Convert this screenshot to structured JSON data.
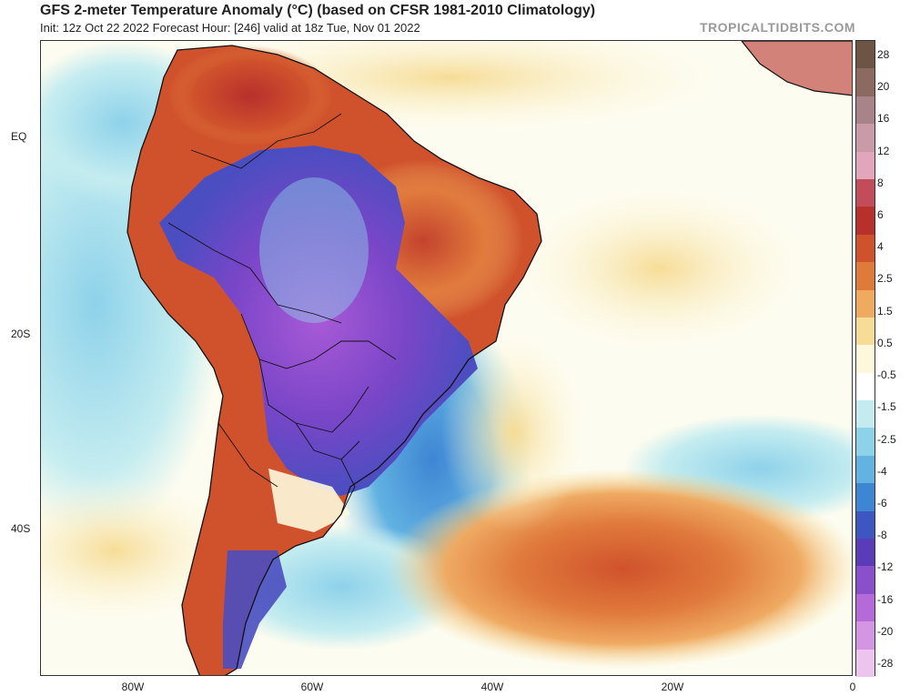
{
  "title": "GFS 2-meter Temperature Anomaly (°C) (based on CFSR 1981-2010 Climatology)",
  "subtitle": "Init: 12z Oct 22 2022   Forecast Hour: [246]   valid at 18z Tue, Nov 01 2022",
  "brand": "TROPICALTIDBITS.COM",
  "lat_labels": [
    "EQ",
    "20S",
    "40S"
  ],
  "lon_labels": [
    "80W",
    "60W",
    "40W",
    "20W",
    "0"
  ],
  "colorbar": {
    "labels": [
      "28",
      "20",
      "16",
      "12",
      "8",
      "6",
      "4",
      "2.5",
      "1.5",
      "0.5",
      "-0.5",
      "-1.5",
      "-2.5",
      "-4",
      "-6",
      "-8",
      "-12",
      "-16",
      "-20",
      "-28"
    ],
    "colors": [
      "#6e5444",
      "#8c6a62",
      "#a8848a",
      "#c99aa8",
      "#e2a6bc",
      "#c24c5a",
      "#b8302c",
      "#d0522c",
      "#e07a3c",
      "#efaa62",
      "#f6dc96",
      "#fdf8dc",
      "#ffffff",
      "#c4ecf0",
      "#8ed2ea",
      "#62b2e2",
      "#3e86d4",
      "#3d56c2",
      "#5a3cb8",
      "#8a50cc",
      "#b46ad8",
      "#d496e2",
      "#ecc4ee"
    ]
  }
}
